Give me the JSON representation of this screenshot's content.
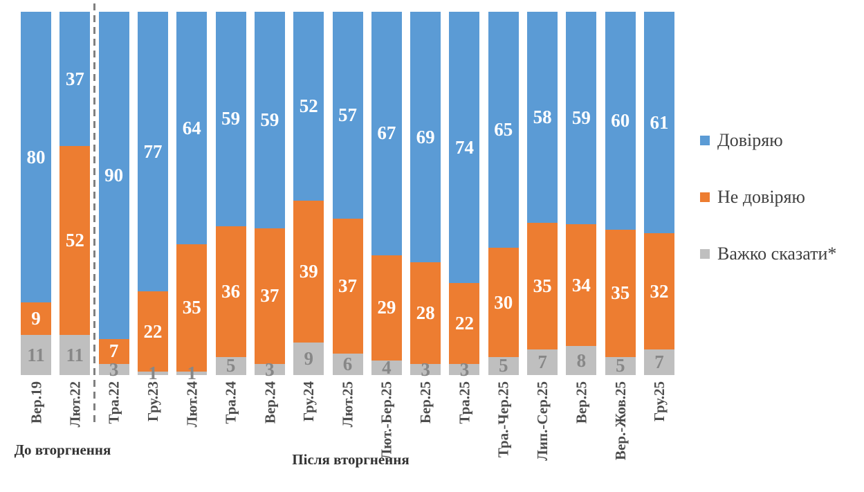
{
  "chart_data": {
    "type": "bar",
    "variant": "stacked-percent-column",
    "title": "",
    "categories": [
      "Вер.19",
      "Лют.22",
      "Тра.22",
      "Гру.23",
      "Лют.24",
      "Тра.24",
      "Вер.24",
      "Гру.24",
      "Лют.25",
      "Лют.-Бер.25",
      "Бер.25",
      "Тра.25",
      "Тра.-Чер.25",
      "Лип.-Сер.25",
      "Вер.25",
      "Вер.-Жов.25",
      "Гру.25"
    ],
    "series": [
      {
        "key": "trust",
        "name": "Довіряю",
        "color": "#5B9BD5",
        "label_color": "#FFFFFF",
        "values": [
          80,
          37,
          90,
          77,
          64,
          59,
          59,
          52,
          57,
          67,
          69,
          74,
          65,
          58,
          59,
          60,
          61
        ]
      },
      {
        "key": "distrust",
        "name": "Не довіряю",
        "color": "#ED7D31",
        "label_color": "#FFFFFF",
        "values": [
          9,
          52,
          7,
          22,
          35,
          36,
          37,
          39,
          37,
          29,
          28,
          22,
          30,
          35,
          34,
          35,
          32
        ]
      },
      {
        "key": "hard-to-say",
        "name": "Важко сказати*",
        "color": "#BFBFBF",
        "label_color": "#878787",
        "values": [
          11,
          11,
          3,
          1,
          1,
          5,
          3,
          9,
          6,
          4,
          3,
          3,
          5,
          7,
          8,
          5,
          7
        ]
      }
    ],
    "annotations": {
      "before_invasion": "До вторгнення",
      "after_invasion": "Після вторгнення"
    },
    "divider_after_category_index": 1,
    "legend_position": "right",
    "ylim": [
      0,
      100
    ],
    "grid": false
  }
}
